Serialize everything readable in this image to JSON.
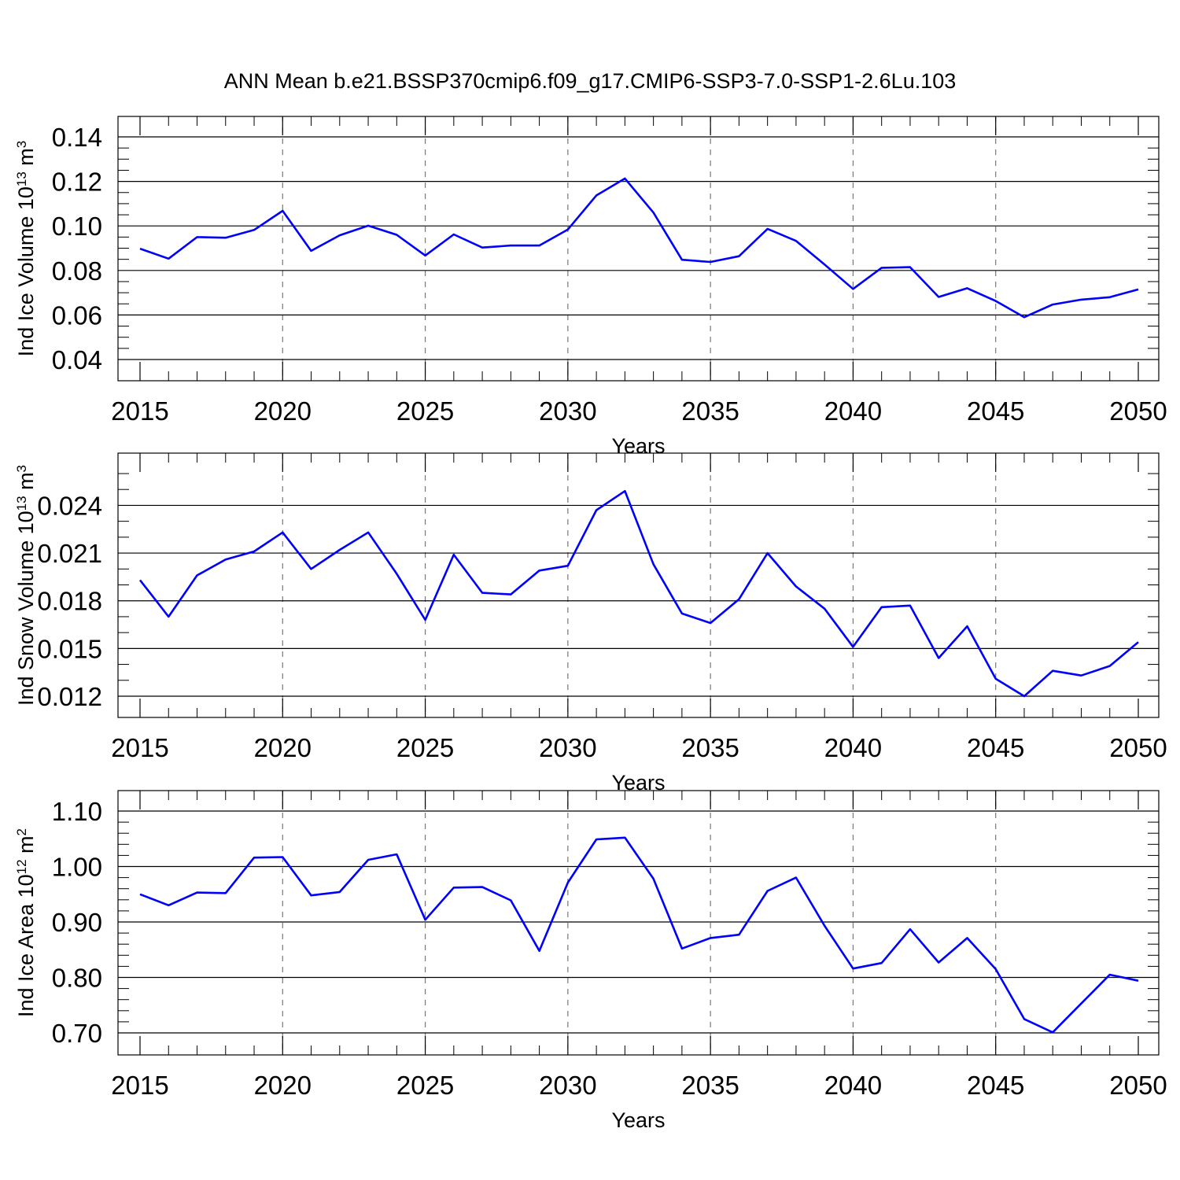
{
  "title": "ANN Mean b.e21.BSSP370cmip6.f09_g17.CMIP6-SSP3-7.0-SSP1-2.6Lu.103",
  "line_color": "#0000ff",
  "chart_data": [
    {
      "type": "line",
      "ylabel": {
        "text": "Ind Ice Volume 10",
        "exponent": "13",
        "unit": " m",
        "unit_exponent": "3"
      },
      "xlabel": "Years",
      "xlim": [
        2015,
        2050
      ],
      "ylim": [
        0.04,
        0.14
      ],
      "xticks": [
        "2015",
        "2020",
        "2025",
        "2030",
        "2035",
        "2040",
        "2045",
        "2050"
      ],
      "yticks": [
        "0.04",
        "0.06",
        "0.08",
        "0.10",
        "0.12",
        "0.14"
      ],
      "grid": "dashed vertical at major x ticks",
      "x": [
        2015,
        2016,
        2017,
        2018,
        2019,
        2020,
        2021,
        2022,
        2023,
        2024,
        2025,
        2026,
        2027,
        2028,
        2029,
        2030,
        2031,
        2032,
        2033,
        2034,
        2035,
        2036,
        2037,
        2038,
        2039,
        2040,
        2041,
        2042,
        2043,
        2044,
        2045,
        2046,
        2047,
        2048,
        2049,
        2050
      ],
      "y": [
        0.0898,
        0.0853,
        0.095,
        0.0947,
        0.0982,
        0.1068,
        0.0888,
        0.0958,
        0.1001,
        0.096,
        0.0867,
        0.0962,
        0.0903,
        0.0912,
        0.0912,
        0.0984,
        0.1137,
        0.1213,
        0.106,
        0.0848,
        0.0838,
        0.0864,
        0.0987,
        0.0933,
        0.0827,
        0.0717,
        0.0812,
        0.0815,
        0.0681,
        0.072,
        0.0663,
        0.059,
        0.0647,
        0.0669,
        0.068,
        0.0715
      ]
    },
    {
      "type": "line",
      "ylabel": {
        "text": "Ind Snow Volume 10",
        "exponent": "13",
        "unit": " m",
        "unit_exponent": "3"
      },
      "xlabel": "Years",
      "xlim": [
        2015,
        2050
      ],
      "ylim": [
        0.012,
        0.026
      ],
      "xticks": [
        "2015",
        "2020",
        "2025",
        "2030",
        "2035",
        "2040",
        "2045",
        "2050"
      ],
      "yticks": [
        "0.012",
        "0.015",
        "0.018",
        "0.021",
        "0.024"
      ],
      "grid": "dashed vertical at major x ticks",
      "x": [
        2015,
        2016,
        2017,
        2018,
        2019,
        2020,
        2021,
        2022,
        2023,
        2024,
        2025,
        2026,
        2027,
        2028,
        2029,
        2030,
        2031,
        2032,
        2033,
        2034,
        2035,
        2036,
        2037,
        2038,
        2039,
        2040,
        2041,
        2042,
        2043,
        2044,
        2045,
        2046,
        2047,
        2048,
        2049,
        2050
      ],
      "y": [
        0.0193,
        0.017,
        0.0196,
        0.0206,
        0.0211,
        0.0223,
        0.02,
        0.0212,
        0.0223,
        0.0197,
        0.0168,
        0.0209,
        0.0185,
        0.0184,
        0.0199,
        0.0202,
        0.0237,
        0.0249,
        0.0203,
        0.0172,
        0.0166,
        0.0181,
        0.021,
        0.0189,
        0.0175,
        0.0151,
        0.0176,
        0.0177,
        0.0144,
        0.0164,
        0.0131,
        0.012,
        0.0136,
        0.0133,
        0.0139,
        0.0154
      ]
    },
    {
      "type": "line",
      "ylabel": {
        "text": "Ind Ice Area 10",
        "exponent": "12",
        "unit": " m",
        "unit_exponent": "2"
      },
      "xlabel": "Years",
      "xlim": [
        2015,
        2050
      ],
      "ylim": [
        0.7,
        1.1
      ],
      "xticks": [
        "2015",
        "2020",
        "2025",
        "2030",
        "2035",
        "2040",
        "2045",
        "2050"
      ],
      "yticks": [
        "0.70",
        "0.80",
        "0.90",
        "1.00",
        "1.10"
      ],
      "grid": "dashed vertical at major x ticks",
      "x": [
        2015,
        2016,
        2017,
        2018,
        2019,
        2020,
        2021,
        2022,
        2023,
        2024,
        2025,
        2026,
        2027,
        2028,
        2029,
        2030,
        2031,
        2032,
        2033,
        2034,
        2035,
        2036,
        2037,
        2038,
        2039,
        2040,
        2041,
        2042,
        2043,
        2044,
        2045,
        2046,
        2047,
        2048,
        2049,
        2050
      ],
      "y": [
        0.95,
        0.93,
        0.953,
        0.952,
        1.016,
        1.017,
        0.948,
        0.954,
        1.012,
        1.022,
        0.904,
        0.962,
        0.963,
        0.939,
        0.848,
        0.971,
        1.049,
        1.052,
        0.978,
        0.852,
        0.871,
        0.877,
        0.956,
        0.98,
        0.893,
        0.816,
        0.826,
        0.887,
        0.827,
        0.871,
        0.815,
        0.725,
        0.701,
        0.753,
        0.805,
        0.794
      ]
    }
  ]
}
